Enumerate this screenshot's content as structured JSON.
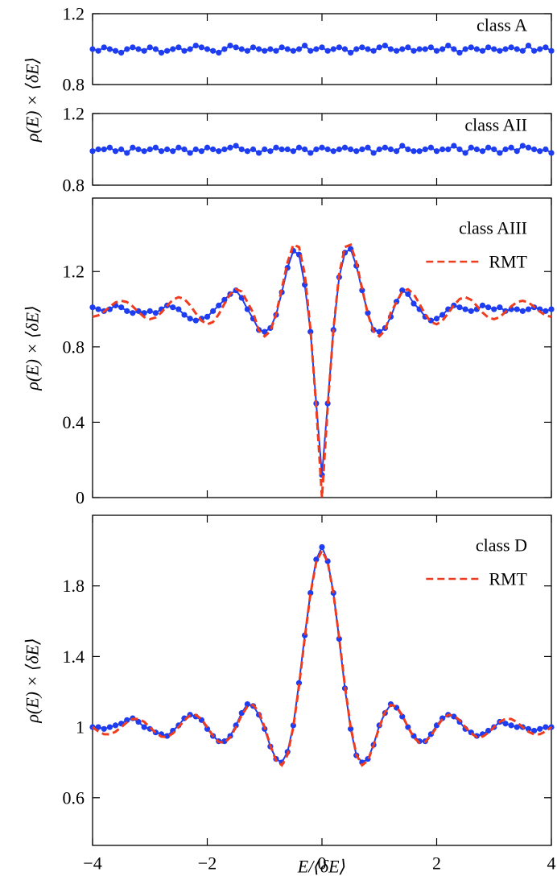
{
  "chart_data": [
    {
      "type": "line",
      "x": [
        -4,
        -3.9,
        -3.8,
        -3.7,
        -3.6,
        -3.5,
        -3.4,
        -3.3,
        -3.2,
        -3.1,
        -3,
        -2.9,
        -2.8,
        -2.7,
        -2.6,
        -2.5,
        -2.4,
        -2.3,
        -2.2,
        -2.1,
        -2,
        -1.9,
        -1.8,
        -1.7,
        -1.6,
        -1.5,
        -1.4,
        -1.3,
        -1.2,
        -1.1,
        -1,
        -0.9,
        -0.8,
        -0.7,
        -0.6,
        -0.5,
        -0.4,
        -0.3,
        -0.2,
        -0.1,
        0,
        0.1,
        0.2,
        0.3,
        0.4,
        0.5,
        0.6,
        0.7,
        0.8,
        0.9,
        1,
        1.1,
        1.2,
        1.3,
        1.4,
        1.5,
        1.6,
        1.7,
        1.8,
        1.9,
        2,
        2.1,
        2.2,
        2.3,
        2.4,
        2.5,
        2.6,
        2.7,
        2.8,
        2.9,
        3,
        3.1,
        3.2,
        3.3,
        3.4,
        3.5,
        3.6,
        3.7,
        3.8,
        3.9,
        4
      ],
      "series": [
        {
          "name": "class A",
          "color": "#1e3cf0",
          "marker": "o",
          "values": [
            1.0,
            0.99,
            1.01,
            1.0,
            0.99,
            0.98,
            1.0,
            1.01,
            1.0,
            0.99,
            1.01,
            1.0,
            0.98,
            0.99,
            1.0,
            1.01,
            0.99,
            1.0,
            1.02,
            1.01,
            1.0,
            0.99,
            0.98,
            1.0,
            1.02,
            1.01,
            1.0,
            0.99,
            1.01,
            1.0,
            0.99,
            1.0,
            0.99,
            1.01,
            1.0,
            0.99,
            1.0,
            1.02,
            0.99,
            1.0,
            1.01,
            0.99,
            1.0,
            1.01,
            1.0,
            0.98,
            1.0,
            1.01,
            1.0,
            0.99,
            1.01,
            1.02,
            1.0,
            0.99,
            1.0,
            1.01,
            0.99,
            1.0,
            1.0,
            1.01,
            0.99,
            1.0,
            1.02,
            1.0,
            0.98,
            1.0,
            1.01,
            1.0,
            0.99,
            1.01,
            1.0,
            0.99,
            1.0,
            1.01,
            1.0,
            0.99,
            1.02,
            0.99,
            1.0,
            1.01,
            0.99
          ]
        }
      ],
      "xlim": [
        -4,
        4
      ],
      "xticks": [
        -4,
        -2,
        0,
        2,
        4
      ],
      "ylim": [
        0.8,
        1.2
      ],
      "yticks": [
        0.8,
        1.2
      ],
      "ylabel": "ρ(E) × ⟨δE⟩"
    },
    {
      "type": "line",
      "x": [
        -4,
        -3.9,
        -3.8,
        -3.7,
        -3.6,
        -3.5,
        -3.4,
        -3.3,
        -3.2,
        -3.1,
        -3,
        -2.9,
        -2.8,
        -2.7,
        -2.6,
        -2.5,
        -2.4,
        -2.3,
        -2.2,
        -2.1,
        -2,
        -1.9,
        -1.8,
        -1.7,
        -1.6,
        -1.5,
        -1.4,
        -1.3,
        -1.2,
        -1.1,
        -1,
        -0.9,
        -0.8,
        -0.7,
        -0.6,
        -0.5,
        -0.4,
        -0.3,
        -0.2,
        -0.1,
        0,
        0.1,
        0.2,
        0.3,
        0.4,
        0.5,
        0.6,
        0.7,
        0.8,
        0.9,
        1,
        1.1,
        1.2,
        1.3,
        1.4,
        1.5,
        1.6,
        1.7,
        1.8,
        1.9,
        2,
        2.1,
        2.2,
        2.3,
        2.4,
        2.5,
        2.6,
        2.7,
        2.8,
        2.9,
        3,
        3.1,
        3.2,
        3.3,
        3.4,
        3.5,
        3.6,
        3.7,
        3.8,
        3.9,
        4
      ],
      "series": [
        {
          "name": "class AII",
          "color": "#1e3cf0",
          "marker": "o",
          "values": [
            0.99,
            1.0,
            1.0,
            1.01,
            0.99,
            1.0,
            0.98,
            1.01,
            1.0,
            0.99,
            1.0,
            1.01,
            0.99,
            1.0,
            0.99,
            1.01,
            1.0,
            0.98,
            1.0,
            0.99,
            1.01,
            1.0,
            0.99,
            1.0,
            1.01,
            1.02,
            1.0,
            0.99,
            1.0,
            0.98,
            1.0,
            0.99,
            1.01,
            1.0,
            1.0,
            0.99,
            1.01,
            1.0,
            0.98,
            1.0,
            1.01,
            1.0,
            0.99,
            1.0,
            1.01,
            1.0,
            0.99,
            1.0,
            1.01,
            0.98,
            1.0,
            1.01,
            1.0,
            0.99,
            1.02,
            1.0,
            0.99,
            0.99,
            1.0,
            1.01,
            0.99,
            1.0,
            1.0,
            1.02,
            1.0,
            0.98,
            1.01,
            1.0,
            0.99,
            1.01,
            1.0,
            0.98,
            1.0,
            1.01,
            0.99,
            1.02,
            1.01,
            1.0,
            0.99,
            1.0,
            0.98
          ]
        }
      ],
      "xlim": [
        -4,
        4
      ],
      "xticks": [
        -4,
        -2,
        0,
        2,
        4
      ],
      "ylim": [
        0.8,
        1.2
      ],
      "yticks": [
        0.8,
        1.2
      ]
    },
    {
      "type": "line",
      "x": [
        -4,
        -3.9,
        -3.8,
        -3.7,
        -3.6,
        -3.5,
        -3.4,
        -3.3,
        -3.2,
        -3.1,
        -3,
        -2.9,
        -2.8,
        -2.7,
        -2.6,
        -2.5,
        -2.4,
        -2.3,
        -2.2,
        -2.1,
        -2,
        -1.9,
        -1.8,
        -1.7,
        -1.6,
        -1.5,
        -1.4,
        -1.3,
        -1.2,
        -1.1,
        -1,
        -0.9,
        -0.8,
        -0.7,
        -0.6,
        -0.5,
        -0.4,
        -0.3,
        -0.2,
        -0.1,
        0,
        0.1,
        0.2,
        0.3,
        0.4,
        0.5,
        0.6,
        0.7,
        0.8,
        0.9,
        1,
        1.1,
        1.2,
        1.3,
        1.4,
        1.5,
        1.6,
        1.7,
        1.8,
        1.9,
        2,
        2.1,
        2.2,
        2.3,
        2.4,
        2.5,
        2.6,
        2.7,
        2.8,
        2.9,
        3,
        3.1,
        3.2,
        3.3,
        3.4,
        3.5,
        3.6,
        3.7,
        3.8,
        3.9,
        4
      ],
      "series": [
        {
          "name": "class AIII",
          "color": "#1e3cf0",
          "marker": "o",
          "values": [
            1.01,
            1.0,
            0.99,
            1.0,
            1.02,
            1.01,
            0.99,
            0.98,
            0.99,
            0.98,
            0.99,
            0.98,
            1.0,
            1.02,
            1.01,
            1.0,
            0.97,
            0.95,
            0.94,
            0.95,
            0.96,
            0.99,
            1.02,
            1.05,
            1.08,
            1.1,
            1.06,
            1.0,
            0.95,
            0.89,
            0.88,
            0.9,
            0.97,
            1.09,
            1.22,
            1.31,
            1.29,
            1.13,
            0.88,
            0.5,
            0.12,
            0.5,
            0.89,
            1.17,
            1.3,
            1.32,
            1.23,
            1.1,
            0.98,
            0.89,
            0.88,
            0.9,
            0.96,
            1.04,
            1.1,
            1.08,
            1.03,
            1.0,
            0.96,
            0.94,
            0.95,
            0.97,
            1.0,
            1.02,
            1.01,
            1.0,
            0.99,
            1.0,
            1.02,
            1.01,
            1.0,
            1.01,
            0.99,
            1.0,
            1.0,
            0.99,
            1.0,
            1.01,
            1.0,
            0.99,
            1.0
          ]
        },
        {
          "name": "RMT",
          "color": "#f03c1e",
          "dashed": true,
          "values": [
            0.96,
            0.967,
            0.987,
            1.013,
            1.036,
            1.045,
            1.038,
            1.015,
            0.985,
            0.958,
            0.947,
            0.956,
            0.982,
            1.018,
            1.05,
            1.064,
            1.054,
            1.021,
            0.978,
            0.939,
            0.92,
            0.932,
            0.973,
            1.029,
            1.08,
            1.106,
            1.094,
            1.037,
            0.982,
            0.887,
            0.856,
            0.883,
            0.974,
            1.11,
            1.249,
            1.342,
            1.33,
            1.186,
            0.893,
            0.481,
            0,
            0.481,
            0.893,
            1.186,
            1.33,
            1.342,
            1.249,
            1.11,
            0.974,
            0.883,
            0.856,
            0.887,
            0.982,
            1.037,
            1.094,
            1.106,
            1.08,
            1.029,
            0.973,
            0.932,
            0.92,
            0.939,
            0.978,
            1.021,
            1.054,
            1.064,
            1.05,
            1.018,
            0.982,
            0.956,
            0.947,
            0.958,
            0.985,
            1.015,
            1.038,
            1.045,
            1.036,
            1.013,
            0.987,
            0.967,
            0.96
          ]
        }
      ],
      "xlim": [
        -4,
        4
      ],
      "xticks": [
        -4,
        -2,
        0,
        2,
        4
      ],
      "ylim": [
        0,
        1.59
      ],
      "yticks": [
        0,
        0.4,
        0.8,
        1.2
      ],
      "ylabel": "ρ(E) × ⟨δE⟩"
    },
    {
      "type": "line",
      "x": [
        -4,
        -3.9,
        -3.8,
        -3.7,
        -3.6,
        -3.5,
        -3.4,
        -3.3,
        -3.2,
        -3.1,
        -3,
        -2.9,
        -2.8,
        -2.7,
        -2.6,
        -2.5,
        -2.4,
        -2.3,
        -2.2,
        -2.1,
        -2,
        -1.9,
        -1.8,
        -1.7,
        -1.6,
        -1.5,
        -1.4,
        -1.3,
        -1.2,
        -1.1,
        -1,
        -0.9,
        -0.8,
        -0.7,
        -0.6,
        -0.5,
        -0.4,
        -0.3,
        -0.2,
        -0.1,
        0,
        0.1,
        0.2,
        0.3,
        0.4,
        0.5,
        0.6,
        0.7,
        0.8,
        0.9,
        1,
        1.1,
        1.2,
        1.3,
        1.4,
        1.5,
        1.6,
        1.7,
        1.8,
        1.9,
        2,
        2.1,
        2.2,
        2.3,
        2.4,
        2.5,
        2.6,
        2.7,
        2.8,
        2.9,
        3,
        3.1,
        3.2,
        3.3,
        3.4,
        3.5,
        3.6,
        3.7,
        3.8,
        3.9,
        4
      ],
      "series": [
        {
          "name": "class D",
          "color": "#1e3cf0",
          "marker": "o",
          "values": [
            1.0,
            1.0,
            0.99,
            1.0,
            1.01,
            1.02,
            1.04,
            1.05,
            1.03,
            1.0,
            0.99,
            0.97,
            0.96,
            0.95,
            0.98,
            1.01,
            1.05,
            1.07,
            1.06,
            1.04,
            0.99,
            0.95,
            0.92,
            0.92,
            0.95,
            1.01,
            1.08,
            1.13,
            1.12,
            1.07,
            0.99,
            0.89,
            0.82,
            0.8,
            0.86,
            1.01,
            1.25,
            1.52,
            1.76,
            1.95,
            2.02,
            1.94,
            1.76,
            1.5,
            1.22,
            0.99,
            0.84,
            0.8,
            0.82,
            0.9,
            1.01,
            1.08,
            1.13,
            1.11,
            1.06,
            1.0,
            0.95,
            0.92,
            0.92,
            0.96,
            1.01,
            1.05,
            1.07,
            1.06,
            1.03,
            0.99,
            0.97,
            0.95,
            0.96,
            0.98,
            1.0,
            1.03,
            1.02,
            1.01,
            1.0,
            1.0,
            0.99,
            0.98,
            0.99,
            1.0,
            1.0
          ]
        },
        {
          "name": "RMT",
          "color": "#f03c1e",
          "dashed": true,
          "values": [
            1.0,
            0.976,
            0.96,
            0.959,
            0.974,
            1.0,
            1.028,
            1.046,
            1.047,
            1.03,
            1.0,
            0.968,
            0.946,
            0.944,
            0.964,
            1.0,
            1.039,
            1.066,
            1.069,
            1.045,
            1.0,
            0.951,
            0.916,
            0.911,
            0.942,
            1.0,
            1.067,
            1.116,
            1.126,
            1.085,
            1.0,
            0.896,
            0.811,
            0.784,
            0.844,
            1.0,
            1.234,
            1.505,
            1.757,
            1.935,
            2,
            1.935,
            1.757,
            1.505,
            1.234,
            1.0,
            0.844,
            0.784,
            0.811,
            0.896,
            1.0,
            1.085,
            1.126,
            1.116,
            1.067,
            1.0,
            0.942,
            0.911,
            0.916,
            0.951,
            1.0,
            1.045,
            1.069,
            1.066,
            1.039,
            1.0,
            0.964,
            0.944,
            0.946,
            0.968,
            1.0,
            1.03,
            1.047,
            1.046,
            1.028,
            1.0,
            0.974,
            0.959,
            0.96,
            0.976,
            1.0
          ]
        }
      ],
      "xlim": [
        -4,
        4
      ],
      "xticks": [
        {
          "value": -4,
          "label": "−4"
        },
        {
          "value": -2,
          "label": "−2"
        },
        0,
        2,
        4
      ],
      "ylim": [
        0.33,
        2.2
      ],
      "yticks": [
        0.6,
        1,
        1.4,
        1.8
      ],
      "xlabel": "E/⟨δE⟩",
      "ylabel": "ρ(E) × ⟨δE⟩"
    }
  ]
}
